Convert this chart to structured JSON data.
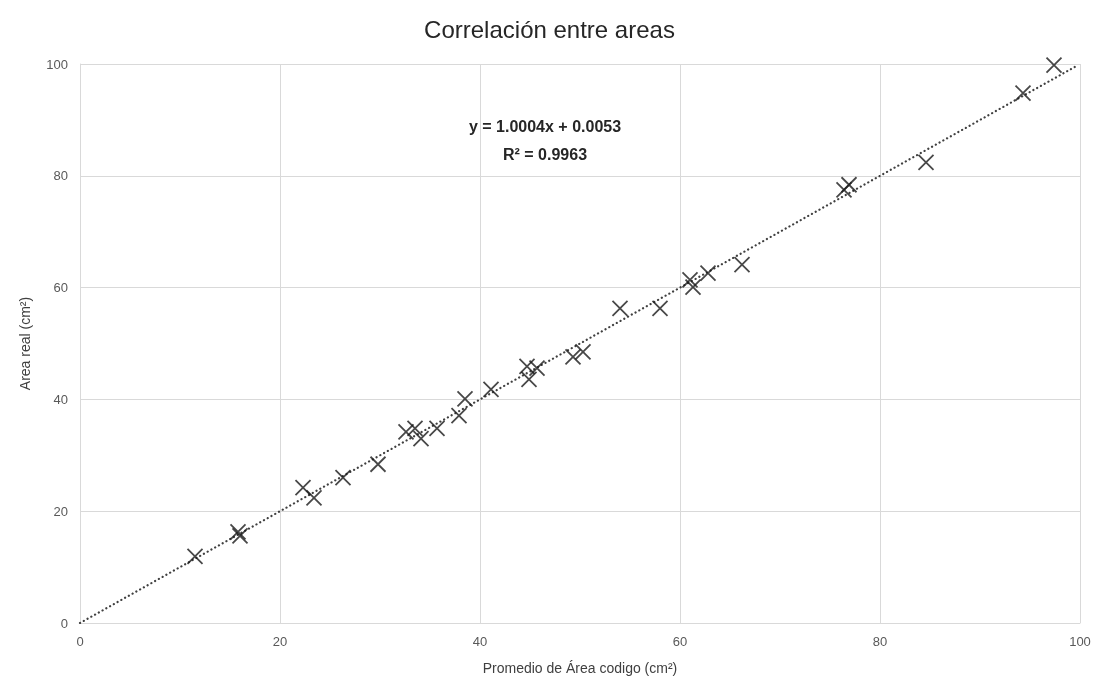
{
  "chart_data": {
    "type": "scatter",
    "title": "Correlación entre areas",
    "xlabel": "Promedio de Área codigo (cm²)",
    "ylabel": "Area real (cm²)",
    "annotations": [
      "y = 1.0004x + 0.0053",
      "R² = 0.9963"
    ],
    "series": [
      {
        "color": "#1a1a1a",
        "marker": "cross",
        "x": [
          11.5,
          15.8,
          16.0,
          22.3,
          23.4,
          26.3,
          29.8,
          32.6,
          33.5,
          34.1,
          35.7,
          37.9,
          38.5,
          41.1,
          44.7,
          44.9,
          45.7,
          49.3,
          50.3,
          54.0,
          58.0,
          61.0,
          61.3,
          62.8,
          66.2,
          76.4,
          76.9,
          84.6,
          94.3,
          97.4
        ],
        "values": [
          11.9,
          16.3,
          15.6,
          24.2,
          22.4,
          26.0,
          28.4,
          34.2,
          34.8,
          33.0,
          34.8,
          37.1,
          40.1,
          41.8,
          45.9,
          43.6,
          45.6,
          47.6,
          48.5,
          56.3,
          56.3,
          61.4,
          60.1,
          62.6,
          64.1,
          77.5,
          78.4,
          82.4,
          94.8,
          99.8
        ]
      },
      {
        "type": "line",
        "color": "#404040",
        "line_style": "dotted",
        "x": [
          0,
          99.5
        ],
        "values": [
          0,
          99.5
        ]
      }
    ],
    "xlim": [
      0,
      100
    ],
    "xticks": [
      0,
      20,
      40,
      60,
      80,
      100
    ],
    "ylim": [
      0,
      100
    ],
    "yticks": [
      0,
      20,
      40,
      60,
      80,
      100
    ],
    "grid": true
  }
}
